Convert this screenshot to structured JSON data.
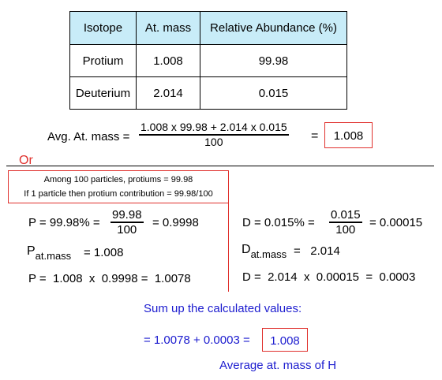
{
  "table": {
    "headers": [
      "Isotope",
      "At. mass",
      "Relative Abundance (%)"
    ],
    "rows": [
      {
        "isotope": "Protium",
        "mass": "1.008",
        "abundance": "99.98"
      },
      {
        "isotope": "Deuterium",
        "mass": "2.014",
        "abundance": "0.015"
      }
    ],
    "header_color": "#c8ecf8"
  },
  "avg": {
    "label": "Avg. At. mass =",
    "numerator": "1.008 x 99.98 + 2.014 x 0.015",
    "denominator": "100",
    "equals": "=",
    "result": "1.008"
  },
  "or_label": "Or",
  "note": {
    "line1": "Among 100 particles, protiums = 99.98",
    "line2": "If 1 particle then protium contribution = 99.98/100"
  },
  "protium": {
    "p_label": "P = 99.98% =",
    "p_num": "99.98",
    "p_den": "100",
    "p_result": "= 0.9998",
    "mass_main": "P",
    "mass_sub": "at.mass",
    "mass_value": "=  1.008",
    "product": "P =  1.008  x  0.9998 =  1.0078"
  },
  "deuterium": {
    "d_label": "D = 0.015% =",
    "d_num": "0.015",
    "d_den": "100",
    "d_result": "= 0.00015",
    "mass_main": "D",
    "mass_sub": "at.mass",
    "mass_value": "=   2.014",
    "product": "D =  2.014  x  0.00015  =  0.0003"
  },
  "summary": {
    "heading": "Sum up the calculated values:",
    "expression": "= 1.0078 + 0.0003 =",
    "result": "1.008",
    "caption": "Average at. mass of H"
  },
  "colors": {
    "accent_red": "#e0312d",
    "accent_blue": "#1c1ccf"
  }
}
